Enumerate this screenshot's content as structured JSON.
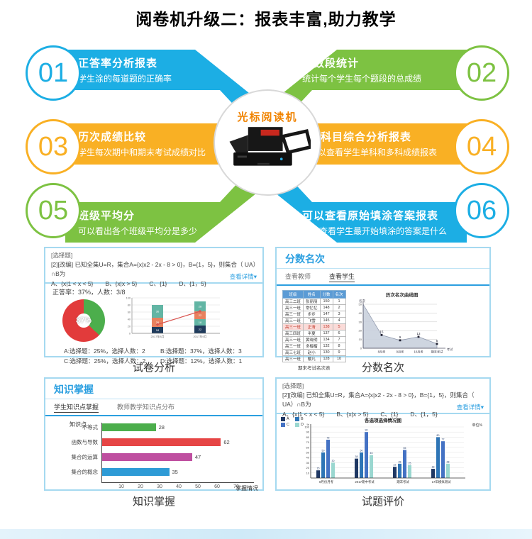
{
  "title": "阅卷机升级二：报表丰富,助力教学",
  "center": {
    "label": "光标阅读机",
    "device_icon": "omr-machine"
  },
  "colors": {
    "blue": "#1caee4",
    "green": "#7dc242",
    "yellow": "#f9b024",
    "link_blue": "#2b9fe0",
    "panel_border": "#a5d9f0"
  },
  "callouts": [
    {
      "num": "01",
      "title": "正答率分析报表",
      "desc": "学生涂的每道题的正确率",
      "color": "#1caee4"
    },
    {
      "num": "02",
      "title": "分数段统计",
      "desc": "统计每个学生每个题段的总成绩",
      "color": "#7dc242"
    },
    {
      "num": "03",
      "title": "历次成绩比较",
      "desc": "学生每次期中和期末考试成绩对比",
      "color": "#f9b024"
    },
    {
      "num": "04",
      "title": "全科目综合分析报表",
      "desc": "可以查看学生单科和多科成绩报表",
      "color": "#f9b024"
    },
    {
      "num": "05",
      "title": "班级平均分",
      "desc": "可以看出各个班级平均分是多少",
      "color": "#7dc242"
    },
    {
      "num": "06",
      "title": "可以查看原始填涂答案报表",
      "desc": "可以查看学生最开始填涂的答案是什么",
      "color": "#1caee4"
    }
  ],
  "question": {
    "tag": "[选择题]",
    "body": "[2][改编] 已知全集U=R，集合A={x|x2 - 2x - 8 > 0}，B={1，5}，则集合（ UA）∩B为",
    "options": "A、{x|1 < x < 5}　　B、{x|x > 5}　　C、{1}　　D、{1，5}",
    "link": "查看详情▾"
  },
  "panel_exam": {
    "caption": "试卷分析",
    "stats": "正答率：37%，人数：3/8",
    "pie": {
      "label": "37%",
      "correct_pct": 37,
      "correct_color": "#4cae4c",
      "wrong_color": "#e23b3b"
    },
    "legend": [
      "A:选择题：25%，选择人数：2",
      "B:选择题：37%，选择人数：3",
      "C:选择题：25%，选择人数：2",
      "D:选择题：12%，选择人数：1"
    ],
    "stack_chart": {
      "type": "bar-stacked",
      "ylim": [
        0,
        100
      ],
      "yticks": [
        0,
        20,
        40,
        60,
        80,
        100
      ],
      "categories": [
        "2017年8月",
        "2017年9月"
      ],
      "bars": [
        [
          {
            "c": "#1f3b5c",
            "v": 18
          },
          {
            "c": "#e8815e",
            "v": 26
          },
          {
            "c": "#62b5a4",
            "v": 36
          }
        ],
        [
          {
            "c": "#1f3b5c",
            "v": 22
          },
          {
            "c": "#62b5a4",
            "v": 18
          },
          {
            "c": "#e8815e",
            "v": 22
          },
          {
            "c": "#62b5a4",
            "v": 28
          }
        ]
      ],
      "line": [
        25,
        62
      ],
      "line_color": "#d9534f"
    }
  },
  "panel_rank": {
    "caption": "分数名次",
    "heading": "分数名次",
    "tabs": [
      "查看教师",
      "查看学生"
    ],
    "active_tab": 1,
    "table": {
      "headers": [
        "班级",
        "姓名",
        "分数",
        "名次"
      ],
      "rows": [
        [
          "高三二班",
          "张丽丽",
          "150",
          "1"
        ],
        [
          "高三一班",
          "常忆忆",
          "148",
          "2"
        ],
        [
          "高三一班",
          "步步",
          "147",
          "3"
        ],
        [
          "高三一班",
          "飞雪",
          "145",
          "4"
        ],
        [
          "高三一班",
          "正清",
          "138",
          "5"
        ],
        [
          "高三四班",
          "半夏",
          "137",
          "6"
        ],
        [
          "高三一班",
          "黄晓明",
          "134",
          "7"
        ],
        [
          "高三一班",
          "多榴榴",
          "132",
          "8"
        ],
        [
          "高三七班",
          "赵小",
          "130",
          "9"
        ],
        [
          "高三一班",
          "樱凡",
          "128",
          "10"
        ]
      ],
      "highlight_row": 4,
      "caption": "期末考试名次表"
    },
    "chart": {
      "type": "area",
      "title": "历次名次曲线图",
      "ylabel": "名次",
      "xlabel": "考试场次",
      "x": [
        "8月考",
        "9月考",
        "10月考",
        "期末考试"
      ],
      "values": [
        15,
        9,
        13,
        5
      ],
      "start_value": 50,
      "ylim": [
        0,
        50
      ],
      "yticks": [
        0,
        10,
        20,
        30,
        40,
        50
      ]
    }
  },
  "panel_knowledge": {
    "caption": "知识掌握",
    "heading": "知识掌握",
    "tabs": [
      "学生知识点掌握",
      "教师教学知识点分布"
    ],
    "active_tab": 0,
    "chart": {
      "type": "bar-horizontal",
      "ylabel": "知识点",
      "xlabel": "掌握情况",
      "categories": [
        "不等式",
        "函数与导数",
        "集合的运算",
        "集合的概念"
      ],
      "values": [
        28,
        62,
        47,
        35
      ],
      "colors": [
        "#4cae4c",
        "#e64545",
        "#bf4fa0",
        "#2e9bd6"
      ],
      "xticks": [
        10,
        20,
        30,
        40,
        50,
        60,
        70
      ],
      "xlim": [
        0,
        75
      ]
    }
  },
  "panel_eval": {
    "caption": "试题评价",
    "chart": {
      "type": "bar-grouped",
      "title": "各选项选择情况图",
      "unit_label": "单位%",
      "categories": [
        "8月份月考",
        "2017期中考试",
        "期末考试",
        "17年模拟测试"
      ],
      "series": [
        {
          "name": "A",
          "color": "#1f3864",
          "values": [
            15,
            38,
            22,
            18
          ]
        },
        {
          "name": "B",
          "color": "#2e75b6",
          "values": [
            50,
            50,
            28,
            80
          ]
        },
        {
          "name": "C",
          "color": "#4472c4",
          "values": [
            75,
            90,
            55,
            72
          ]
        },
        {
          "name": "D",
          "color": "#9ad7d0",
          "values": [
            30,
            45,
            25,
            28
          ]
        }
      ],
      "ylim": [
        0,
        100
      ],
      "yticks": [
        10,
        20,
        30,
        40,
        50,
        60,
        70,
        80,
        90,
        100
      ]
    }
  }
}
